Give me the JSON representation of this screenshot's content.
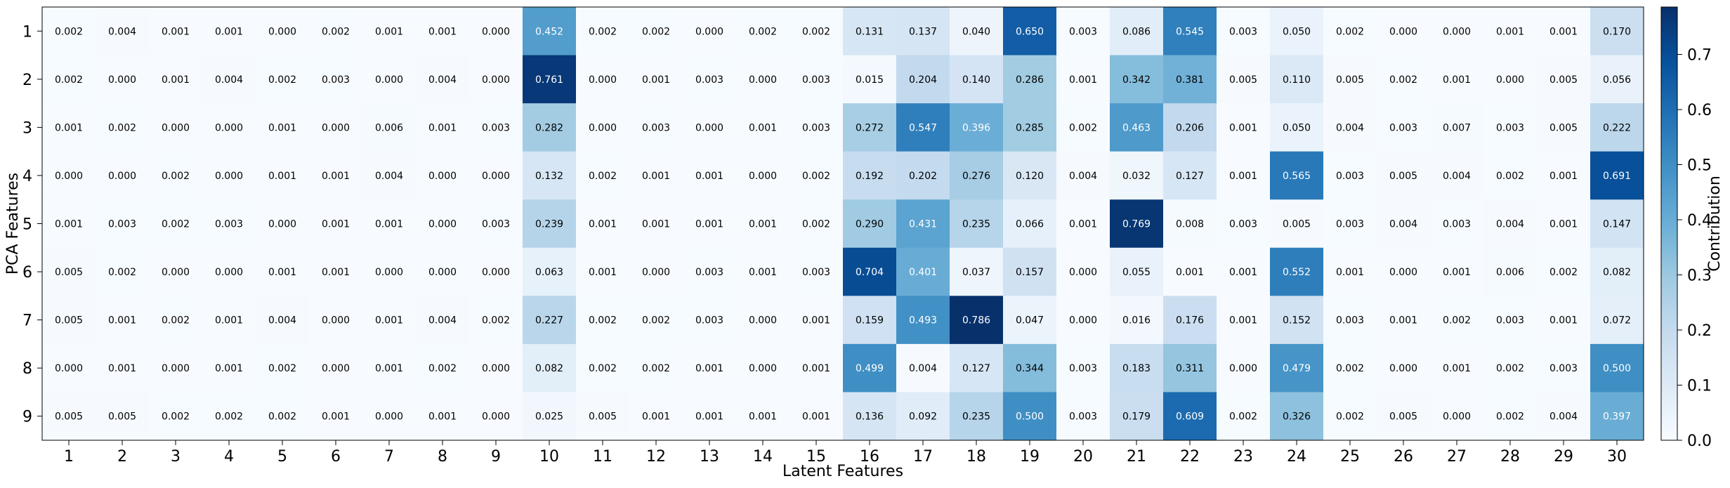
{
  "chart_data": {
    "type": "heatmap",
    "title": "",
    "xlabel": "Latent Features",
    "ylabel": "PCA Features",
    "x_categories": [
      "1",
      "2",
      "3",
      "4",
      "5",
      "6",
      "7",
      "8",
      "9",
      "10",
      "11",
      "12",
      "13",
      "14",
      "15",
      "16",
      "17",
      "18",
      "19",
      "20",
      "21",
      "22",
      "23",
      "24",
      "25",
      "26",
      "27",
      "28",
      "29",
      "30"
    ],
    "y_categories": [
      "1",
      "2",
      "3",
      "4",
      "5",
      "6",
      "7",
      "8",
      "9"
    ],
    "values": [
      [
        0.002,
        0.004,
        0.001,
        0.001,
        0.0,
        0.002,
        0.001,
        0.001,
        0.0,
        0.452,
        0.002,
        0.002,
        0.0,
        0.002,
        0.002,
        0.131,
        0.137,
        0.04,
        0.65,
        0.003,
        0.086,
        0.545,
        0.003,
        0.05,
        0.002,
        0.0,
        0.0,
        0.001,
        0.001,
        0.17
      ],
      [
        0.002,
        0.0,
        0.001,
        0.004,
        0.002,
        0.003,
        0.0,
        0.004,
        0.0,
        0.761,
        0.0,
        0.001,
        0.003,
        0.0,
        0.003,
        0.015,
        0.204,
        0.14,
        0.286,
        0.001,
        0.342,
        0.381,
        0.005,
        0.11,
        0.005,
        0.002,
        0.001,
        0.0,
        0.005,
        0.056
      ],
      [
        0.001,
        0.002,
        0.0,
        0.0,
        0.001,
        0.0,
        0.006,
        0.001,
        0.003,
        0.282,
        0.0,
        0.003,
        0.0,
        0.001,
        0.003,
        0.272,
        0.547,
        0.396,
        0.285,
        0.002,
        0.463,
        0.206,
        0.001,
        0.05,
        0.004,
        0.003,
        0.007,
        0.003,
        0.005,
        0.222
      ],
      [
        0.0,
        0.0,
        0.002,
        0.0,
        0.001,
        0.001,
        0.004,
        0.0,
        0.0,
        0.132,
        0.002,
        0.001,
        0.001,
        0.0,
        0.002,
        0.192,
        0.202,
        0.276,
        0.12,
        0.004,
        0.032,
        0.127,
        0.001,
        0.565,
        0.003,
        0.005,
        0.004,
        0.002,
        0.001,
        0.691
      ],
      [
        0.001,
        0.003,
        0.002,
        0.003,
        0.0,
        0.001,
        0.001,
        0.0,
        0.003,
        0.239,
        0.001,
        0.001,
        0.001,
        0.001,
        0.002,
        0.29,
        0.431,
        0.235,
        0.066,
        0.001,
        0.769,
        0.008,
        0.003,
        0.005,
        0.003,
        0.004,
        0.003,
        0.004,
        0.001,
        0.147
      ],
      [
        0.005,
        0.002,
        0.0,
        0.0,
        0.001,
        0.001,
        0.0,
        0.0,
        0.0,
        0.063,
        0.001,
        0.0,
        0.003,
        0.001,
        0.003,
        0.704,
        0.401,
        0.037,
        0.157,
        0.0,
        0.055,
        0.001,
        0.001,
        0.552,
        0.001,
        0.0,
        0.001,
        0.006,
        0.002,
        0.082
      ],
      [
        0.005,
        0.001,
        0.002,
        0.001,
        0.004,
        0.0,
        0.001,
        0.004,
        0.002,
        0.227,
        0.002,
        0.002,
        0.003,
        0.0,
        0.001,
        0.159,
        0.493,
        0.786,
        0.047,
        0.0,
        0.016,
        0.176,
        0.001,
        0.152,
        0.003,
        0.001,
        0.002,
        0.003,
        0.001,
        0.072
      ],
      [
        0.0,
        0.001,
        0.0,
        0.001,
        0.002,
        0.0,
        0.001,
        0.002,
        0.0,
        0.082,
        0.002,
        0.002,
        0.001,
        0.0,
        0.001,
        0.499,
        0.004,
        0.127,
        0.344,
        0.003,
        0.183,
        0.311,
        0.0,
        0.479,
        0.002,
        0.0,
        0.001,
        0.002,
        0.003,
        0.5
      ],
      [
        0.005,
        0.005,
        0.002,
        0.002,
        0.002,
        0.001,
        0.0,
        0.001,
        0.0,
        0.025,
        0.005,
        0.001,
        0.001,
        0.001,
        0.001,
        0.136,
        0.092,
        0.235,
        0.5,
        0.003,
        0.179,
        0.609,
        0.002,
        0.326,
        0.002,
        0.005,
        0.0,
        0.002,
        0.004,
        0.397
      ]
    ],
    "color_scale": {
      "name": "Blues",
      "min": 0.0,
      "max": 0.786,
      "low_color": "#f7fbff",
      "high_color": "#08306b"
    },
    "colorbar": {
      "label": "Contribution",
      "ticks": [
        0.0,
        0.1,
        0.2,
        0.3,
        0.4,
        0.5,
        0.6,
        0.7
      ],
      "tick_labels": [
        "0.0",
        "0.1",
        "0.2",
        "0.3",
        "0.4",
        "0.5",
        "0.6",
        "0.7"
      ]
    },
    "value_format": "3 decimals",
    "grid": false
  }
}
